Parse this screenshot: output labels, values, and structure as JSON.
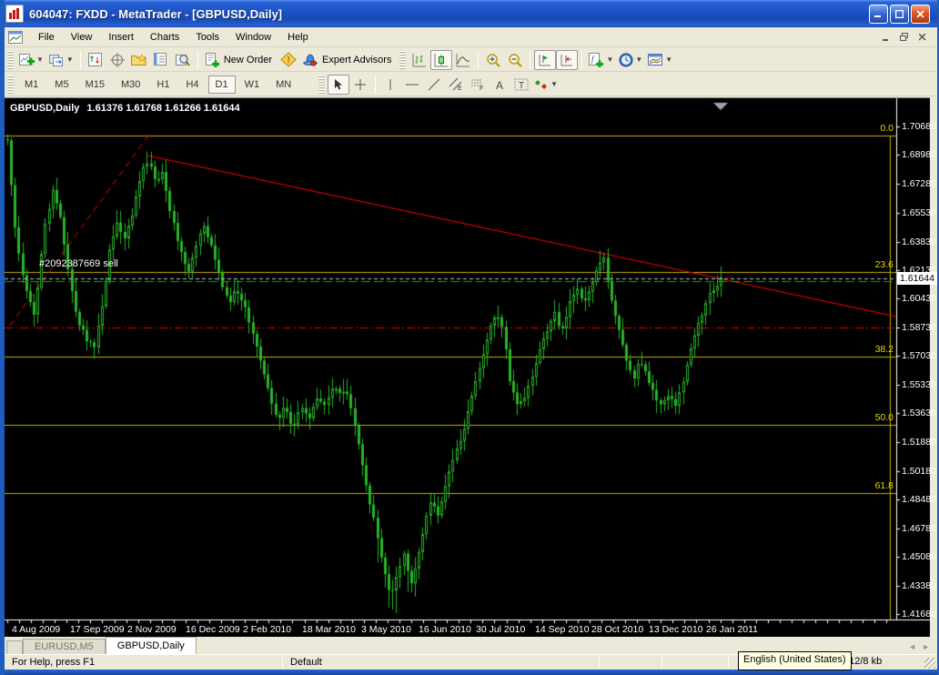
{
  "window": {
    "title": "604047: FXDD - MetaTrader - [GBPUSD,Daily]"
  },
  "menu": {
    "items": [
      "File",
      "View",
      "Insert",
      "Charts",
      "Tools",
      "Window",
      "Help"
    ]
  },
  "toolbar": {
    "new_order_label": "New Order",
    "expert_advisors_label": "Expert Advisors"
  },
  "timeframes": {
    "items": [
      "M1",
      "M5",
      "M15",
      "M30",
      "H1",
      "H4",
      "D1",
      "W1",
      "MN"
    ],
    "active": "D1"
  },
  "chart": {
    "ohlc_text": "1.61376 1.61768 1.61266 1.61644",
    "order_label": "#2092387669 sell",
    "current_price_label": "1.61644"
  },
  "chart_data": {
    "type": "line",
    "style": "candlestick_ohlc_daily",
    "title": "GBPUSD,Daily",
    "ohlc": {
      "open": 1.61376,
      "high": 1.61768,
      "low": 1.61266,
      "close": 1.61644
    },
    "ylim": [
      1.4168,
      1.7068
    ],
    "grid": false,
    "y_tick_labels": [
      "1.70680",
      "1.68980",
      "1.67280",
      "1.65530",
      "1.63830",
      "1.62130",
      "1.60430",
      "1.58730",
      "1.57030",
      "1.55330",
      "1.53630",
      "1.51880",
      "1.50180",
      "1.48480",
      "1.46780",
      "1.45080",
      "1.43380",
      "1.41680"
    ],
    "x_ticks": [
      {
        "label": "4 Aug 2009",
        "xf": 0.008
      },
      {
        "label": "17 Sep 2009",
        "xf": 0.073
      },
      {
        "label": "2 Nov 2009",
        "xf": 0.138
      },
      {
        "label": "16 Dec 2009",
        "xf": 0.203
      },
      {
        "label": "2 Feb 2010",
        "xf": 0.267
      },
      {
        "label": "18 Mar 2010",
        "xf": 0.334
      },
      {
        "label": "3 May 2010",
        "xf": 0.4
      },
      {
        "label": "16 Jun 2010",
        "xf": 0.464
      },
      {
        "label": "30 Jul 2010",
        "xf": 0.529
      },
      {
        "label": "14 Sep 2010",
        "xf": 0.595
      },
      {
        "label": "28 Oct 2010",
        "xf": 0.658
      },
      {
        "label": "13 Dec 2010",
        "xf": 0.722
      },
      {
        "label": "26 Jan 2011",
        "xf": 0.787
      }
    ],
    "close_path": [
      [
        0.0,
        1.6992
      ],
      [
        0.008,
        1.6559
      ],
      [
        0.018,
        1.6235
      ],
      [
        0.028,
        1.6072
      ],
      [
        0.038,
        1.5937
      ],
      [
        0.051,
        1.6451
      ],
      [
        0.064,
        1.6695
      ],
      [
        0.074,
        1.6532
      ],
      [
        0.086,
        1.6181
      ],
      [
        0.098,
        1.591
      ],
      [
        0.111,
        1.5802
      ],
      [
        0.122,
        1.5759
      ],
      [
        0.133,
        1.6018
      ],
      [
        0.143,
        1.6332
      ],
      [
        0.153,
        1.6494
      ],
      [
        0.163,
        1.6386
      ],
      [
        0.176,
        1.657
      ],
      [
        0.189,
        1.6803
      ],
      [
        0.198,
        1.6873
      ],
      [
        0.208,
        1.6743
      ],
      [
        0.218,
        1.6797
      ],
      [
        0.228,
        1.6559
      ],
      [
        0.241,
        1.6354
      ],
      [
        0.253,
        1.6202
      ],
      [
        0.264,
        1.6365
      ],
      [
        0.274,
        1.6494
      ],
      [
        0.284,
        1.6386
      ],
      [
        0.297,
        1.6181
      ],
      [
        0.31,
        1.6018
      ],
      [
        0.32,
        1.6094
      ],
      [
        0.333,
        1.6007
      ],
      [
        0.346,
        1.5791
      ],
      [
        0.358,
        1.5629
      ],
      [
        0.367,
        1.5466
      ],
      [
        0.378,
        1.5326
      ],
      [
        0.389,
        1.5412
      ],
      [
        0.399,
        1.5272
      ],
      [
        0.412,
        1.5412
      ],
      [
        0.422,
        1.5326
      ],
      [
        0.435,
        1.5466
      ],
      [
        0.445,
        1.5412
      ],
      [
        0.457,
        1.552
      ],
      [
        0.467,
        1.5466
      ],
      [
        0.476,
        1.5493
      ],
      [
        0.486,
        1.5304
      ],
      [
        0.496,
        1.5087
      ],
      [
        0.506,
        1.4871
      ],
      [
        0.517,
        1.4654
      ],
      [
        0.527,
        1.4438
      ],
      [
        0.537,
        1.4276
      ],
      [
        0.547,
        1.4411
      ],
      [
        0.556,
        1.4546
      ],
      [
        0.565,
        1.433
      ],
      [
        0.575,
        1.4492
      ],
      [
        0.584,
        1.4681
      ],
      [
        0.593,
        1.4844
      ],
      [
        0.603,
        1.4762
      ],
      [
        0.614,
        1.4925
      ],
      [
        0.624,
        1.5087
      ],
      [
        0.635,
        1.5195
      ],
      [
        0.645,
        1.5358
      ],
      [
        0.654,
        1.552
      ],
      [
        0.665,
        1.5682
      ],
      [
        0.675,
        1.5871
      ],
      [
        0.685,
        1.5953
      ],
      [
        0.695,
        1.5844
      ],
      [
        0.705,
        1.552
      ],
      [
        0.716,
        1.5412
      ],
      [
        0.726,
        1.5466
      ],
      [
        0.736,
        1.5574
      ],
      [
        0.746,
        1.5737
      ],
      [
        0.756,
        1.5844
      ],
      [
        0.767,
        1.5953
      ],
      [
        0.777,
        1.5844
      ],
      [
        0.787,
        1.6007
      ],
      [
        0.797,
        1.6115
      ],
      [
        0.807,
        1.6007
      ],
      [
        0.818,
        1.6115
      ],
      [
        0.828,
        1.625
      ],
      [
        0.836,
        1.6288
      ],
      [
        0.843,
        1.6115
      ],
      [
        0.851,
        1.5953
      ],
      [
        0.858,
        1.5844
      ],
      [
        0.869,
        1.5655
      ],
      [
        0.879,
        1.5574
      ],
      [
        0.886,
        1.5682
      ],
      [
        0.897,
        1.5574
      ],
      [
        0.907,
        1.5466
      ],
      [
        0.917,
        1.5412
      ],
      [
        0.927,
        1.5466
      ],
      [
        0.938,
        1.5412
      ],
      [
        0.948,
        1.5574
      ],
      [
        0.957,
        1.5737
      ],
      [
        0.966,
        1.5871
      ],
      [
        0.974,
        1.5953
      ],
      [
        0.983,
        1.6061
      ],
      [
        1.0,
        1.6164
      ]
    ],
    "fibonacci_levels": [
      {
        "label": "0.0",
        "price": 1.7014
      },
      {
        "label": "23.6",
        "price": 1.6202
      },
      {
        "label": "38.2",
        "price": 1.57
      },
      {
        "label": "50.0",
        "price": 1.5294
      },
      {
        "label": "61.8",
        "price": 1.4888
      }
    ],
    "trendlines": [
      {
        "name": "descending-resistance",
        "style": "solid",
        "color": "#ff0000",
        "points": [
          [
            0.158,
            1.6895
          ],
          [
            1.0,
            1.5937
          ]
        ]
      },
      {
        "name": "ascending-support",
        "style": "dashed",
        "color": "#ff0000",
        "points": [
          [
            0.003,
            1.5883
          ],
          [
            0.161,
            1.703
          ]
        ]
      }
    ],
    "horizontal_lines": [
      {
        "style": "dashdot",
        "color": "#e80000",
        "price": 1.5873
      }
    ],
    "order_line": {
      "label": "#2092387669 sell",
      "price": 1.615,
      "color": "#00b400",
      "style": "dashed"
    },
    "current_price": 1.61644,
    "colors": {
      "background": "#000000",
      "candles": "#28b428",
      "fib": "#c8ae00",
      "fib_label": "#e8d800",
      "current_price_line": "#c8c8c8"
    }
  },
  "tabs": {
    "items": [
      {
        "label": "EURUSD,M5",
        "active": false
      },
      {
        "label": "GBPUSD,Daily",
        "active": true
      }
    ]
  },
  "status_bar": {
    "help": "For Help, press F1",
    "profile": "Default",
    "language": "English (United States)",
    "traffic": "912/8 kb"
  }
}
